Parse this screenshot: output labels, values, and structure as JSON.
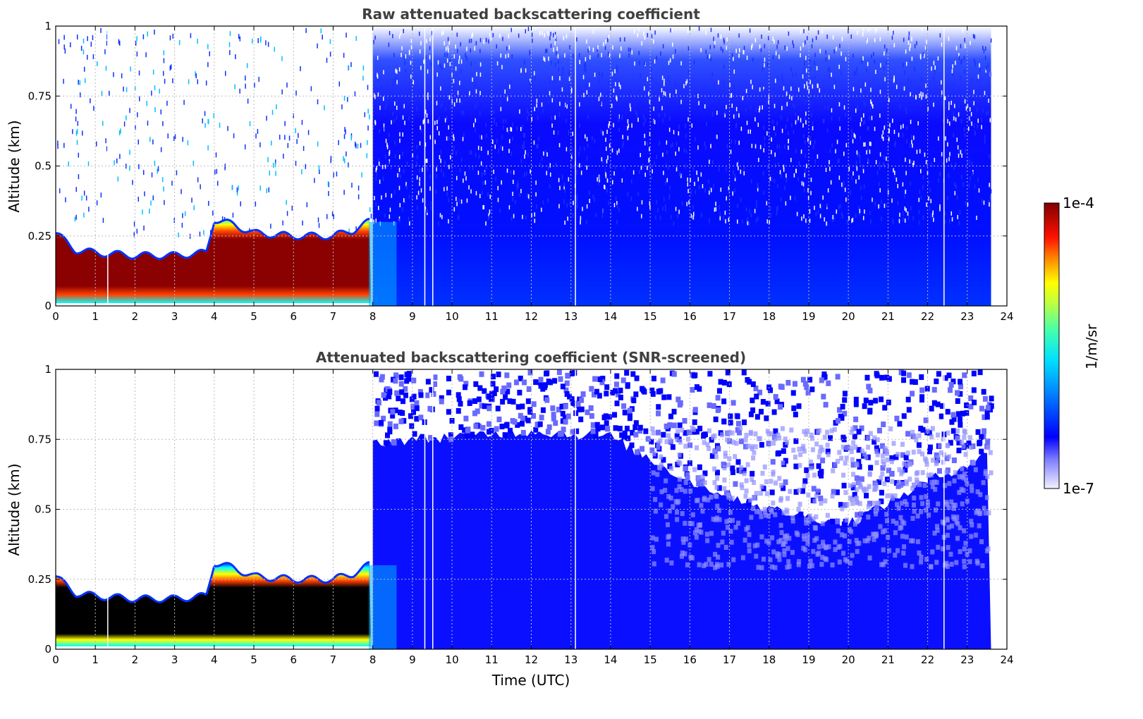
{
  "chart_data": [
    {
      "type": "heatmap",
      "title": "Raw attenuated backscattering coefficient",
      "xlabel": "",
      "ylabel": "Altitude (km)",
      "xlim": [
        0,
        24
      ],
      "ylim": [
        0,
        1
      ],
      "xticks": [
        "0",
        "1",
        "2",
        "3",
        "4",
        "5",
        "6",
        "7",
        "8",
        "9",
        "10",
        "11",
        "12",
        "13",
        "14",
        "15",
        "16",
        "17",
        "18",
        "19",
        "20",
        "21",
        "22",
        "23",
        "24"
      ],
      "yticks": [
        "0",
        "0.25",
        "0.5",
        "0.75",
        "1"
      ],
      "grid": true,
      "data_end_time": 23.6,
      "layer_top_km": [
        {
          "t": 0.0,
          "z": 0.26
        },
        {
          "t": 0.5,
          "z": 0.2
        },
        {
          "t": 1.0,
          "z": 0.19
        },
        {
          "t": 2.0,
          "z": 0.18
        },
        {
          "t": 3.0,
          "z": 0.18
        },
        {
          "t": 3.8,
          "z": 0.19
        },
        {
          "t": 4.0,
          "z": 0.31
        },
        {
          "t": 4.5,
          "z": 0.29
        },
        {
          "t": 5.0,
          "z": 0.26
        },
        {
          "t": 6.0,
          "z": 0.25
        },
        {
          "t": 7.0,
          "z": 0.25
        },
        {
          "t": 7.5,
          "z": 0.27
        },
        {
          "t": 7.9,
          "z": 0.3
        }
      ],
      "vertical_gaps_time": [
        1.3,
        9.3,
        9.5,
        13.1,
        22.4
      ]
    },
    {
      "type": "heatmap",
      "title": "Attenuated backscattering coefficient (SNR-screened)",
      "xlabel": "Time (UTC)",
      "ylabel": "Altitude (km)",
      "xlim": [
        0,
        24
      ],
      "ylim": [
        0,
        1
      ],
      "xticks": [
        "0",
        "1",
        "2",
        "3",
        "4",
        "5",
        "6",
        "7",
        "8",
        "9",
        "10",
        "11",
        "12",
        "13",
        "14",
        "15",
        "16",
        "17",
        "18",
        "19",
        "20",
        "21",
        "22",
        "23",
        "24"
      ],
      "yticks": [
        "0",
        "0.25",
        "0.5",
        "0.75",
        "1"
      ],
      "grid": true,
      "data_end_time": 23.6,
      "screened_top_km": [
        {
          "t": 8.0,
          "z": 0.74
        },
        {
          "t": 10.0,
          "z": 0.76
        },
        {
          "t": 12.0,
          "z": 0.78
        },
        {
          "t": 14.0,
          "z": 0.76
        },
        {
          "t": 16.0,
          "z": 0.6
        },
        {
          "t": 18.0,
          "z": 0.5
        },
        {
          "t": 20.0,
          "z": 0.45
        },
        {
          "t": 22.0,
          "z": 0.6
        },
        {
          "t": 23.6,
          "z": 0.7
        }
      ],
      "vertical_gaps_time": [
        1.3,
        9.3,
        9.5,
        13.1,
        22.4
      ]
    }
  ],
  "colorbar": {
    "label": "1/m/sr",
    "max_label": "1e-4",
    "min_label": "1e-7",
    "scale": "log",
    "colormap": [
      "#ffffff",
      "#0000ff",
      "#00c8ff",
      "#00ffaa",
      "#ffff00",
      "#ff8000",
      "#ff0000",
      "#800000"
    ]
  }
}
